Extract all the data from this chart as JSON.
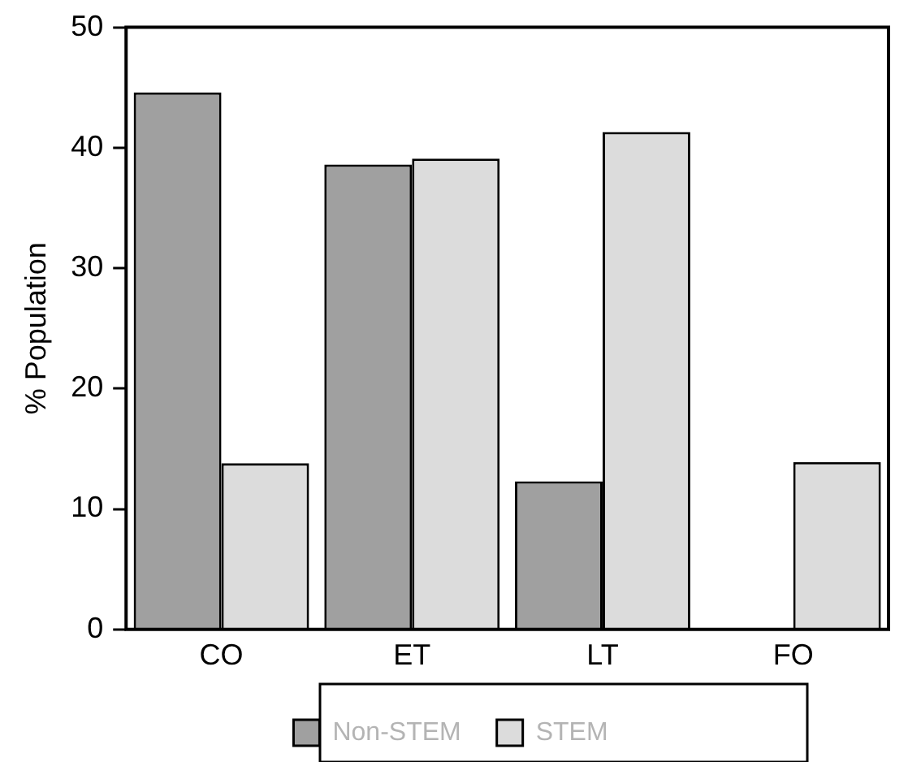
{
  "chart_data": {
    "type": "bar",
    "ylabel": "% Population",
    "categories": [
      "CO",
      "ET",
      "LT",
      "FO"
    ],
    "series": [
      {
        "name": "Non-STEM",
        "color": "#a0a0a0",
        "values": [
          44.6,
          38.6,
          12.3,
          null
        ]
      },
      {
        "name": "STEM",
        "color": "#dcdcdc",
        "values": [
          13.8,
          39.1,
          41.3,
          13.9
        ]
      }
    ],
    "ylim": [
      0,
      50
    ],
    "yticks": [
      0,
      10,
      20,
      30,
      40,
      50
    ],
    "grid": false,
    "legend": "bottom"
  }
}
